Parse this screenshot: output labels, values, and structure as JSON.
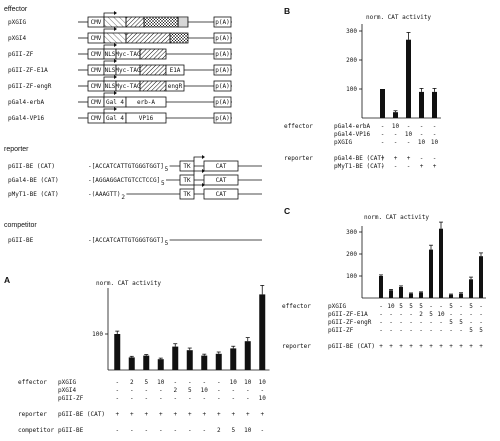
{
  "labels": {
    "effector": "effector",
    "reporter": "reporter",
    "competitor": "competitor",
    "panel_A": "A",
    "panel_B": "B",
    "panel_C": "C",
    "ylabel": "norm. CAT activity"
  },
  "constructs": [
    {
      "name": "pXGIG",
      "segs": [
        {
          "t": "CMV",
          "w": 16
        },
        {
          "t": "",
          "w": 22,
          "p": "tip"
        },
        {
          "t": "",
          "w": 18,
          "p": "hatch"
        },
        {
          "t": "",
          "w": 34,
          "p": "cross"
        },
        {
          "t": "",
          "w": 10,
          "p": "dots"
        }
      ],
      "pA": "p(A)"
    },
    {
      "name": "pXGI4",
      "segs": [
        {
          "t": "CMV",
          "w": 16
        },
        {
          "t": "",
          "w": 22,
          "p": "tip"
        },
        {
          "t": "",
          "w": 44,
          "p": "hatch"
        },
        {
          "t": "",
          "w": 18,
          "p": "cross"
        }
      ],
      "pA": "p(A)"
    },
    {
      "name": "pGII-ZF",
      "segs": [
        {
          "t": "CMV",
          "w": 16
        },
        {
          "t": "NLS",
          "w": 12
        },
        {
          "t": "Myc-TAG",
          "w": 24
        },
        {
          "t": "",
          "w": 26,
          "p": "hatch"
        }
      ],
      "pA": "p(A)"
    },
    {
      "name": "pGII-ZF-E1A",
      "segs": [
        {
          "t": "CMV",
          "w": 16
        },
        {
          "t": "NLS",
          "w": 12
        },
        {
          "t": "Myc-TAG",
          "w": 24
        },
        {
          "t": "",
          "w": 26,
          "p": "hatch"
        },
        {
          "t": "E1A",
          "w": 18
        }
      ],
      "pA": "p(A)"
    },
    {
      "name": "pGII-ZF-engR",
      "segs": [
        {
          "t": "CMV",
          "w": 16
        },
        {
          "t": "NLS",
          "w": 12
        },
        {
          "t": "Myc-TAG",
          "w": 24
        },
        {
          "t": "",
          "w": 26,
          "p": "hatch"
        },
        {
          "t": "engR",
          "w": 18
        }
      ],
      "pA": "p(A)"
    },
    {
      "name": "pGal4-erbA",
      "segs": [
        {
          "t": "CMV",
          "w": 16
        },
        {
          "t": "Gal 4",
          "w": 22
        },
        {
          "t": "erb-A",
          "w": 40
        }
      ],
      "pA": "p(A)"
    },
    {
      "name": "pGal4-VP16",
      "segs": [
        {
          "t": "CMV",
          "w": 16
        },
        {
          "t": "Gal 4",
          "w": 22
        },
        {
          "t": "VP16",
          "w": 40
        }
      ],
      "pA": "p(A)"
    }
  ],
  "reporters": [
    {
      "name": "pGII-BE (CAT)",
      "seq": "-[ACCATCATTGTGGGTGGT]",
      "sub": "5"
    },
    {
      "name": "pGal4-BE (CAT)",
      "seq": "-[AGGAGGACTGTCCTCCG]",
      "sub": "5"
    },
    {
      "name": "pMyT1-BE (CAT)",
      "seq": "-(AAAGTT)",
      "sub": "2"
    }
  ],
  "reporter_parts": {
    "tk": "TK",
    "cat": "CAT"
  },
  "competitor_construct": {
    "name": "pGII-BE",
    "seq": "-[ACCATCATTGTGGGTGGT]",
    "sub": "5"
  },
  "chart_data": [
    {
      "panel": "A",
      "type": "bar",
      "ylabel": "norm. CAT activity",
      "yticks": [
        {
          "v": 100,
          "label": "100"
        }
      ],
      "values": [
        100,
        35,
        40,
        30,
        65,
        55,
        40,
        45,
        60,
        80,
        210
      ],
      "errors": [
        8,
        3,
        3,
        3,
        8,
        6,
        4,
        5,
        6,
        10,
        25
      ],
      "table_rows": [
        {
          "section": "effector",
          "name": "pXGIG",
          "cells": [
            "-",
            "2",
            "5",
            "10",
            "-",
            "-",
            "-",
            "-",
            "10",
            "10",
            "10"
          ]
        },
        {
          "section": "",
          "name": "pXGI4",
          "cells": [
            "-",
            "-",
            "-",
            "-",
            "2",
            "5",
            "10",
            "-",
            "-",
            "-",
            "-"
          ]
        },
        {
          "section": "",
          "name": "pGII-ZF",
          "cells": [
            "-",
            "-",
            "-",
            "-",
            "-",
            "-",
            "-",
            "-",
            "-",
            "-",
            "10"
          ]
        },
        {
          "section": "reporter",
          "name": "pGII-BE (CAT)",
          "cells": [
            "+",
            "+",
            "+",
            "+",
            "+",
            "+",
            "+",
            "+",
            "+",
            "+",
            "+"
          ]
        },
        {
          "section": "competitor",
          "name": "pGII-BE",
          "cells": [
            "-",
            "-",
            "-",
            "-",
            "-",
            "-",
            "-",
            "2",
            "5",
            "10",
            "-"
          ]
        }
      ]
    },
    {
      "panel": "B",
      "type": "bar",
      "ylabel": "norm. CAT activity",
      "yticks": [
        {
          "v": 100,
          "label": "100"
        },
        {
          "v": 200,
          "label": "200"
        },
        {
          "v": 300,
          "label": "300"
        }
      ],
      "values": [
        100,
        20,
        270,
        90,
        90
      ],
      "errors": [
        0,
        5,
        25,
        12,
        12
      ],
      "table_rows": [
        {
          "section": "effector",
          "name": "pGal4-erbA",
          "cells": [
            "-",
            "10",
            "-",
            "-",
            "-"
          ]
        },
        {
          "section": "",
          "name": "pGal4-VP16",
          "cells": [
            "-",
            "-",
            "10",
            "-",
            "-"
          ]
        },
        {
          "section": "",
          "name": "pXGIG",
          "cells": [
            "-",
            "-",
            "-",
            "10",
            "10"
          ]
        },
        {
          "section": "reporter",
          "name": "pGal4-BE (CAT)",
          "cells": [
            "+",
            "+",
            "+",
            "-",
            "-"
          ]
        },
        {
          "section": "",
          "name": "pMyT1-BE (CAT)",
          "cells": [
            "-",
            "-",
            "-",
            "+",
            "+"
          ]
        }
      ]
    },
    {
      "panel": "C",
      "type": "bar",
      "ylabel": "norm. CAT activity",
      "yticks": [
        {
          "v": 100,
          "label": "100"
        },
        {
          "v": 200,
          "label": "200"
        },
        {
          "v": 300,
          "label": "300"
        }
      ],
      "values": [
        100,
        35,
        50,
        20,
        25,
        220,
        315,
        15,
        20,
        85,
        190
      ],
      "errors": [
        5,
        4,
        5,
        3,
        3,
        20,
        30,
        3,
        4,
        10,
        15
      ],
      "table_rows": [
        {
          "section": "effector",
          "name": "pXGIG",
          "cells": [
            "-",
            "10",
            "5",
            "5",
            "5",
            "-",
            "-",
            "5",
            "-",
            "5",
            "-"
          ]
        },
        {
          "section": "",
          "name": "pGII-ZF-E1A",
          "cells": [
            "-",
            "-",
            "-",
            "-",
            "2",
            "5",
            "10",
            "-",
            "-",
            "-",
            "-"
          ]
        },
        {
          "section": "",
          "name": "pGII-ZF-engR",
          "cells": [
            "-",
            "-",
            "-",
            "-",
            "-",
            "-",
            "-",
            "5",
            "5",
            "-",
            "-"
          ]
        },
        {
          "section": "",
          "name": "pGII-ZF",
          "cells": [
            "-",
            "-",
            "-",
            "-",
            "-",
            "-",
            "-",
            "-",
            "-",
            "5",
            "5"
          ]
        },
        {
          "section": "reporter",
          "name": "pGII-BE (CAT)",
          "cells": [
            "+",
            "+",
            "+",
            "+",
            "+",
            "+",
            "+",
            "+",
            "+",
            "+",
            "+"
          ]
        }
      ]
    }
  ]
}
